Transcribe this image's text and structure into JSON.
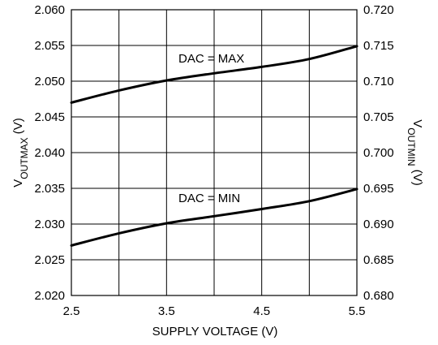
{
  "chart_data": {
    "type": "line",
    "title": "",
    "xlabel": "SUPPLY VOLTAGE (V)",
    "ylabel_left": {
      "main": "V",
      "sub": "OUTMAX",
      "unit": " (V)"
    },
    "ylabel_right": {
      "main": "V",
      "sub": "OUTMIN",
      "unit": " (V)"
    },
    "xlim": [
      2.5,
      5.5
    ],
    "ylim_left": [
      2.02,
      2.06
    ],
    "ylim_right": [
      0.68,
      0.72
    ],
    "x_ticks": [
      "2.5",
      "3.5",
      "4.5",
      "5.5"
    ],
    "x_gridlines": [
      2.5,
      3.0,
      3.5,
      4.0,
      4.5,
      5.0,
      5.5
    ],
    "y_left_ticks": [
      "2.020",
      "2.025",
      "2.030",
      "2.035",
      "2.040",
      "2.045",
      "2.050",
      "2.055",
      "2.060"
    ],
    "y_right_ticks": [
      "0.680",
      "0.685",
      "0.690",
      "0.695",
      "0.700",
      "0.705",
      "0.710",
      "0.715",
      "0.720"
    ],
    "grid": true,
    "series": [
      {
        "label": "DAC = MAX",
        "axis": "left",
        "x": [
          2.5,
          3.0,
          3.5,
          4.0,
          4.5,
          5.0,
          5.5
        ],
        "y": [
          2.047,
          2.0487,
          2.0501,
          2.0511,
          2.052,
          2.0531,
          2.0549
        ]
      },
      {
        "label": "DAC = MIN",
        "axis": "right",
        "x": [
          2.5,
          3.0,
          3.5,
          4.0,
          4.5,
          5.0,
          5.5
        ],
        "y": [
          0.687,
          0.6887,
          0.6901,
          0.6911,
          0.6921,
          0.6932,
          0.6949
        ]
      }
    ]
  }
}
